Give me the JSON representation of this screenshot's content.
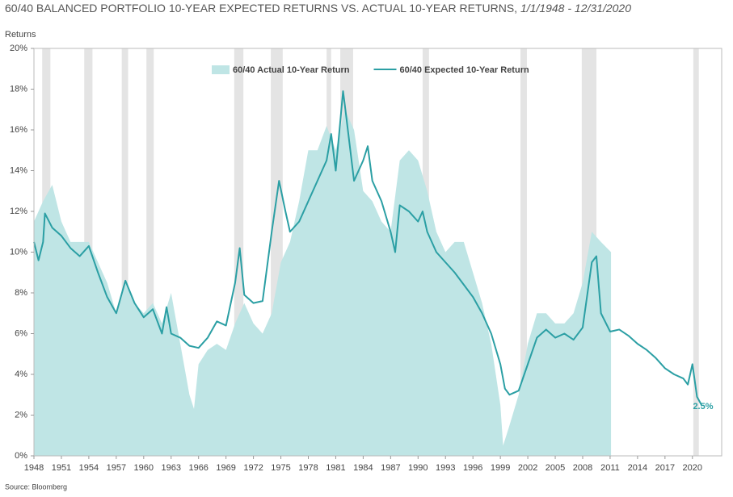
{
  "chart_data": {
    "type": "line",
    "title": "60/40 BALANCED PORTFOLIO 10-YEAR EXPECTED RETURNS VS. ACTUAL 10-YEAR RETURNS, ",
    "title_dates": "1/1/1948 - 12/31/2020",
    "y_label": "Returns",
    "source": "Source: Bloomberg",
    "legend": "top",
    "grid": false,
    "xlim": [
      1948,
      2023.2
    ],
    "xticks": [
      1948,
      1951,
      1954,
      1957,
      1960,
      1963,
      1966,
      1969,
      1972,
      1975,
      1978,
      1981,
      1984,
      1987,
      1990,
      1993,
      1996,
      1999,
      2002,
      2005,
      2008,
      2011,
      2014,
      2017,
      2020
    ],
    "ylim": [
      0,
      20
    ],
    "yticks": [
      {
        "value": 0,
        "label": "0%"
      },
      {
        "value": 2,
        "label": "2%"
      },
      {
        "value": 4,
        "label": "4%"
      },
      {
        "value": 6,
        "label": "6%"
      },
      {
        "value": 8,
        "label": "8%"
      },
      {
        "value": 10,
        "label": "10%"
      },
      {
        "value": 12,
        "label": "12%"
      },
      {
        "value": 14,
        "label": "14%"
      },
      {
        "value": 16,
        "label": "16%"
      },
      {
        "value": 18,
        "label": "18%"
      },
      {
        "value": 20,
        "label": "20%"
      }
    ],
    "shaded_periods": [
      [
        1948.9,
        1949.8
      ],
      [
        1953.5,
        1954.4
      ],
      [
        1957.6,
        1958.3
      ],
      [
        1960.3,
        1961.1
      ],
      [
        1969.9,
        1970.9
      ],
      [
        1973.9,
        1975.2
      ],
      [
        1980.0,
        1980.5
      ],
      [
        1981.5,
        1982.9
      ],
      [
        1990.5,
        1991.2
      ],
      [
        2001.2,
        2001.9
      ],
      [
        2007.9,
        2009.5
      ],
      [
        2020.1,
        2020.7
      ]
    ],
    "shaded_color": "#e4e4e4",
    "series": [
      {
        "name": "60/40 Actual 10-Year Return",
        "kind": "area",
        "color": "#bfe5e5",
        "x": [
          1948,
          1949,
          1950,
          1951,
          1952,
          1953,
          1954,
          1955,
          1956,
          1957,
          1958,
          1959,
          1960,
          1961,
          1962,
          1963,
          1964,
          1965,
          1965.5,
          1966,
          1967,
          1968,
          1969,
          1970,
          1971,
          1972,
          1973,
          1974,
          1975,
          1976,
          1977,
          1978,
          1979,
          1980,
          1981,
          1982,
          1983,
          1984,
          1985,
          1986,
          1987,
          1988,
          1989,
          1990,
          1991,
          1992,
          1993,
          1994,
          1995,
          1996,
          1997,
          1998,
          1999,
          1999.3,
          2000,
          2001,
          2002,
          2003,
          2004,
          2005,
          2006,
          2007,
          2008,
          2009,
          2010,
          2011.1
        ],
        "values": [
          11.5,
          12.5,
          13.3,
          11.5,
          10.5,
          10.5,
          10.5,
          9.5,
          8.5,
          7.0,
          8.5,
          7.5,
          7.0,
          7.5,
          6.5,
          8.0,
          5.5,
          3.0,
          2.3,
          4.5,
          5.2,
          5.5,
          5.2,
          6.5,
          7.5,
          6.5,
          6.0,
          7.0,
          9.5,
          10.5,
          12.5,
          15.0,
          15.0,
          16.2,
          15.0,
          17.0,
          16.0,
          13.0,
          12.5,
          11.5,
          11.0,
          14.5,
          15.0,
          14.5,
          13.0,
          11.0,
          10.0,
          10.5,
          10.5,
          9.0,
          7.5,
          5.5,
          2.5,
          0.5,
          1.5,
          3.0,
          5.5,
          7.0,
          7.0,
          6.5,
          6.5,
          7.0,
          8.5,
          11.0,
          10.5,
          10.0
        ]
      },
      {
        "name": "60/40 Expected 10-Year Return",
        "kind": "line",
        "color": "#2b9fa4",
        "end_label": "2.5%",
        "x": [
          1948,
          1948.5,
          1949,
          1949.2,
          1950,
          1951,
          1952,
          1953,
          1954,
          1955,
          1956,
          1957,
          1958,
          1959,
          1960,
          1961,
          1962,
          1962.5,
          1963,
          1964,
          1965,
          1966,
          1967,
          1968,
          1969,
          1970,
          1970.5,
          1971,
          1972,
          1973,
          1974,
          1974.8,
          1975.5,
          1976,
          1977,
          1978,
          1979,
          1980,
          1980.5,
          1981,
          1981.8,
          1982,
          1983,
          1984,
          1984.5,
          1985,
          1986,
          1987,
          1987.5,
          1988,
          1989,
          1990,
          1990.5,
          1991,
          1992,
          1993,
          1994,
          1995,
          1996,
          1997,
          1998,
          1999,
          1999.5,
          2000,
          2001,
          2002,
          2003,
          2004,
          2005,
          2006,
          2007,
          2008,
          2009,
          2009.5,
          2010,
          2011,
          2012,
          2013,
          2014,
          2015,
          2016,
          2017,
          2018,
          2019,
          2019.5,
          2020,
          2020.5,
          2020.99
        ],
        "values": [
          10.5,
          9.6,
          10.5,
          11.9,
          11.2,
          10.8,
          10.2,
          9.8,
          10.3,
          9.0,
          7.8,
          7.0,
          8.6,
          7.5,
          6.8,
          7.2,
          6.0,
          7.3,
          6.0,
          5.8,
          5.4,
          5.3,
          5.8,
          6.6,
          6.4,
          8.5,
          10.2,
          7.9,
          7.5,
          7.6,
          11.0,
          13.5,
          12.0,
          11.0,
          11.5,
          12.5,
          13.5,
          14.5,
          15.8,
          14.0,
          17.9,
          17.2,
          13.5,
          14.5,
          15.2,
          13.5,
          12.5,
          11.0,
          10.0,
          12.3,
          12.0,
          11.5,
          12.0,
          11.0,
          10.0,
          9.5,
          9.0,
          8.4,
          7.8,
          7.0,
          6.0,
          4.5,
          3.3,
          3.0,
          3.2,
          4.5,
          5.8,
          6.2,
          5.8,
          6.0,
          5.7,
          6.3,
          9.5,
          9.8,
          7.0,
          6.1,
          6.2,
          5.9,
          5.5,
          5.2,
          4.8,
          4.3,
          4.0,
          3.8,
          3.5,
          4.5,
          2.9,
          2.5
        ]
      }
    ]
  }
}
